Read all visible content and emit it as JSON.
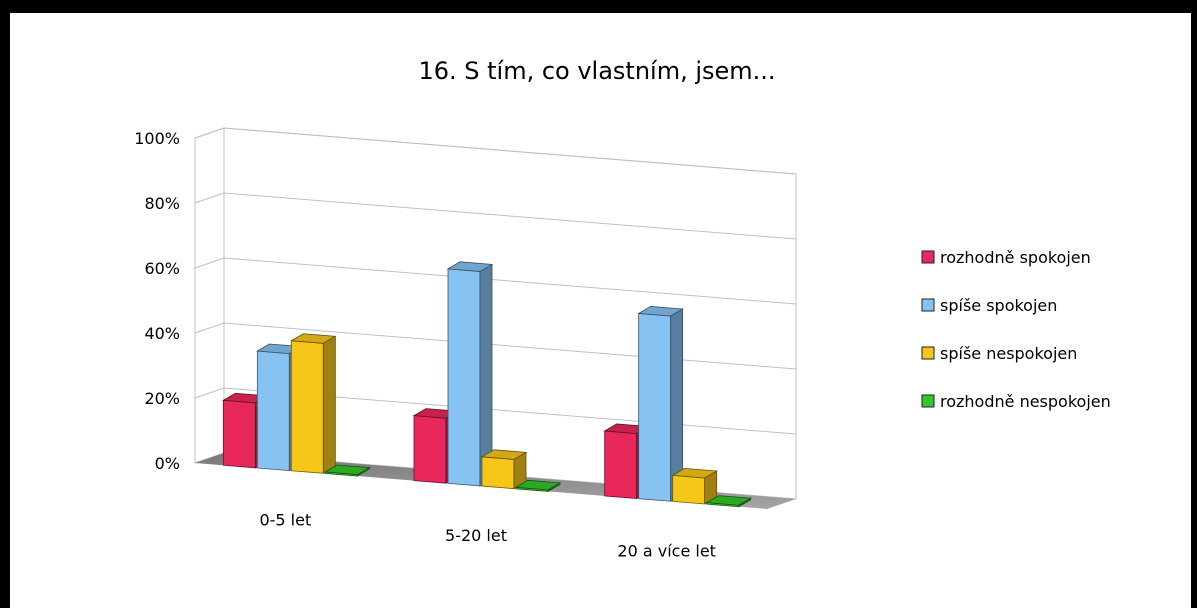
{
  "chart_data": {
    "type": "bar",
    "title": "16. S tím, co vlastním, jsem...",
    "categories": [
      "0-5 let",
      "5-20 let",
      "20 a více let"
    ],
    "y_ticks": [
      "0%",
      "20%",
      "40%",
      "60%",
      "80%",
      "100%"
    ],
    "ylim": [
      0,
      100
    ],
    "grid": true,
    "legend_position": "right",
    "series": [
      {
        "name": "rozhodně spokojen",
        "values": [
          20,
          20,
          20
        ],
        "color": "#e8285a"
      },
      {
        "name": "spíše spokojen",
        "values": [
          36,
          66,
          57
        ],
        "color": "#86c2f2"
      },
      {
        "name": "spíše nespokojen",
        "values": [
          40,
          9,
          8
        ],
        "color": "#f6c619"
      },
      {
        "name": "rozhodně nespokojen",
        "values": [
          0,
          0,
          0
        ],
        "color": "#33c72a"
      }
    ]
  }
}
